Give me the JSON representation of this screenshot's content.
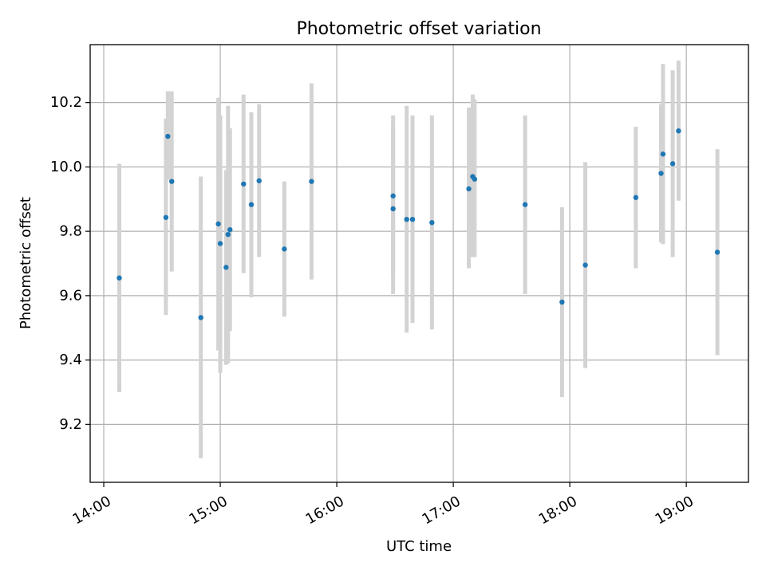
{
  "chart_data": {
    "type": "scatter",
    "title": "Photometric offset variation",
    "xlabel": "UTC time",
    "ylabel": "Photometric offset",
    "xlim": [
      "13:53",
      "19:32"
    ],
    "ylim": [
      9.02,
      10.38
    ],
    "x_ticks": [
      "14:00",
      "15:00",
      "16:00",
      "17:00",
      "18:00",
      "19:00"
    ],
    "y_ticks": [
      "9.2",
      "9.4",
      "9.6",
      "9.8",
      "10.0",
      "10.2"
    ],
    "grid": true,
    "marker_color": "#1f77b4",
    "errorbar_color": "#d3d3d3",
    "points": [
      {
        "x": "14:08",
        "y": 9.655,
        "yerr_low": 9.3,
        "yerr_high": 10.01
      },
      {
        "x": "14:32",
        "y": 9.843,
        "yerr_low": 9.54,
        "yerr_high": 10.15
      },
      {
        "x": "14:33",
        "y": 10.095,
        "yerr_low": 9.96,
        "yerr_high": 10.235
      },
      {
        "x": "14:35",
        "y": 9.955,
        "yerr_low": 9.675,
        "yerr_high": 10.235
      },
      {
        "x": "14:50",
        "y": 9.532,
        "yerr_low": 9.095,
        "yerr_high": 9.97
      },
      {
        "x": "14:59",
        "y": 9.823,
        "yerr_low": 9.43,
        "yerr_high": 10.215
      },
      {
        "x": "15:00",
        "y": 9.762,
        "yerr_low": 9.36,
        "yerr_high": 10.16
      },
      {
        "x": "15:03",
        "y": 9.688,
        "yerr_low": 9.385,
        "yerr_high": 9.99
      },
      {
        "x": "15:04",
        "y": 9.79,
        "yerr_low": 9.39,
        "yerr_high": 10.19
      },
      {
        "x": "15:05",
        "y": 9.805,
        "yerr_low": 9.49,
        "yerr_high": 10.12
      },
      {
        "x": "15:12",
        "y": 9.947,
        "yerr_low": 9.67,
        "yerr_high": 10.225
      },
      {
        "x": "15:16",
        "y": 9.883,
        "yerr_low": 9.595,
        "yerr_high": 10.17
      },
      {
        "x": "15:20",
        "y": 9.957,
        "yerr_low": 9.72,
        "yerr_high": 10.195
      },
      {
        "x": "15:33",
        "y": 9.745,
        "yerr_low": 9.535,
        "yerr_high": 9.955
      },
      {
        "x": "15:47",
        "y": 9.955,
        "yerr_low": 9.65,
        "yerr_high": 10.26
      },
      {
        "x": "16:29",
        "y": 9.91,
        "yerr_low": 9.66,
        "yerr_high": 10.16
      },
      {
        "x": "16:29",
        "y": 9.87,
        "yerr_low": 9.605,
        "yerr_high": 10.13
      },
      {
        "x": "16:36",
        "y": 9.837,
        "yerr_low": 9.485,
        "yerr_high": 10.19
      },
      {
        "x": "16:39",
        "y": 9.837,
        "yerr_low": 9.515,
        "yerr_high": 10.16
      },
      {
        "x": "16:49",
        "y": 9.827,
        "yerr_low": 9.495,
        "yerr_high": 10.16
      },
      {
        "x": "17:08",
        "y": 9.932,
        "yerr_low": 9.685,
        "yerr_high": 10.185
      },
      {
        "x": "17:10",
        "y": 9.97,
        "yerr_low": 9.72,
        "yerr_high": 10.225
      },
      {
        "x": "17:11",
        "y": 9.962,
        "yerr_low": 9.72,
        "yerr_high": 10.21
      },
      {
        "x": "17:37",
        "y": 9.883,
        "yerr_low": 9.605,
        "yerr_high": 10.16
      },
      {
        "x": "17:56",
        "y": 9.58,
        "yerr_low": 9.285,
        "yerr_high": 9.875
      },
      {
        "x": "18:08",
        "y": 9.695,
        "yerr_low": 9.375,
        "yerr_high": 10.015
      },
      {
        "x": "18:34",
        "y": 9.905,
        "yerr_low": 9.685,
        "yerr_high": 10.125
      },
      {
        "x": "18:47",
        "y": 9.98,
        "yerr_low": 9.765,
        "yerr_high": 10.195
      },
      {
        "x": "18:48",
        "y": 10.04,
        "yerr_low": 9.76,
        "yerr_high": 10.32
      },
      {
        "x": "18:53",
        "y": 10.01,
        "yerr_low": 9.72,
        "yerr_high": 10.3
      },
      {
        "x": "18:56",
        "y": 10.112,
        "yerr_low": 9.895,
        "yerr_high": 10.33
      },
      {
        "x": "19:16",
        "y": 9.735,
        "yerr_low": 9.415,
        "yerr_high": 10.055
      }
    ]
  }
}
